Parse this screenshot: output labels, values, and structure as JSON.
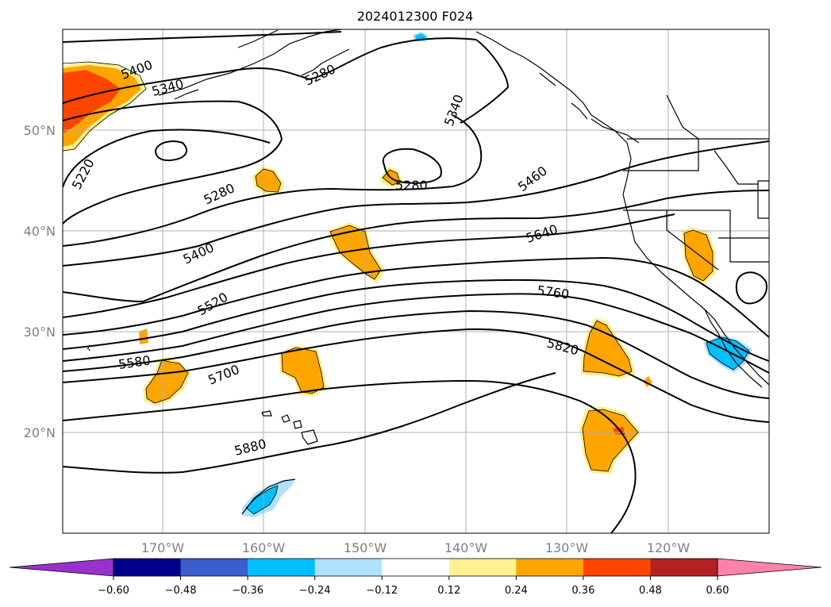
{
  "title": "2024012300 F024",
  "map": {
    "lon_range": [
      -180,
      -110
    ],
    "lat_range": [
      10,
      60
    ],
    "lat_ticks": [
      "50°N",
      "40°N",
      "30°N",
      "20°N"
    ],
    "lon_ticks": [
      "170°W",
      "160°W",
      "150°W",
      "140°W",
      "130°W",
      "120°W"
    ],
    "grid": true,
    "grid_color": "#b0b0b0",
    "contour_color": "#000000",
    "contour_labels": [
      "5400",
      "5340",
      "5280",
      "5220",
      "5280",
      "5340",
      "5280",
      "5460",
      "5400",
      "5640",
      "5520",
      "5760",
      "5580",
      "5820",
      "5700",
      "5880"
    ]
  },
  "colorbar": {
    "ticks": [
      "−0.60",
      "−0.48",
      "−0.36",
      "−0.24",
      "−0.12",
      "0.12",
      "0.24",
      "0.36",
      "0.48",
      "0.60"
    ],
    "colors": [
      "#9932cc",
      "#00008b",
      "#3a5fcd",
      "#00bfff",
      "#b0e2ff",
      "#ffffff",
      "#fff08f",
      "#ffa500",
      "#ff4500",
      "#b22222",
      "#ff82ab"
    ],
    "extend": "both"
  }
}
